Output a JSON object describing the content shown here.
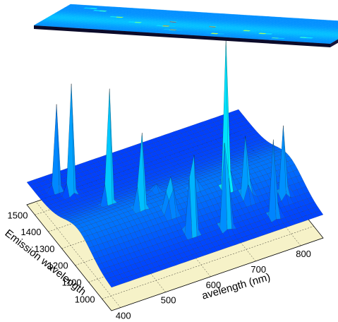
{
  "chart_data": {
    "type": "surface",
    "projection_plane": "top contour map of the surface",
    "colormap": "jet",
    "xlabel": "Excitation wavelength (nm)",
    "ylabel": "Emission wavelength (nm)",
    "x_ticks": [
      "400",
      "500",
      "600",
      "700",
      "800"
    ],
    "y_ticks": [
      "1000",
      "1100",
      "1200",
      "1300",
      "1400",
      "1500"
    ],
    "xlim": [
      380,
      850
    ],
    "ylim": [
      930,
      1560
    ],
    "grid": true,
    "peaks": [
      {
        "x": 570,
        "y": 1255,
        "z": 1.0
      },
      {
        "x": 640,
        "y": 1190,
        "z": 0.98
      },
      {
        "x": 700,
        "y": 1140,
        "z": 0.99
      },
      {
        "x": 570,
        "y": 1130,
        "z": 0.64
      },
      {
        "x": 590,
        "y": 1040,
        "z": 0.68
      },
      {
        "x": 660,
        "y": 1010,
        "z": 0.6
      },
      {
        "x": 730,
        "y": 1090,
        "z": 0.57
      },
      {
        "x": 480,
        "y": 1290,
        "z": 0.52
      },
      {
        "x": 440,
        "y": 1430,
        "z": 0.5
      },
      {
        "x": 420,
        "y": 1480,
        "z": 0.38
      },
      {
        "x": 520,
        "y": 1180,
        "z": 0.36
      },
      {
        "x": 760,
        "y": 990,
        "z": 0.34
      },
      {
        "x": 800,
        "y": 1050,
        "z": 0.4
      }
    ]
  },
  "axes": {
    "x_title_visible": "avelength  (nm)",
    "y_title_visible": "Emission wavelength"
  }
}
